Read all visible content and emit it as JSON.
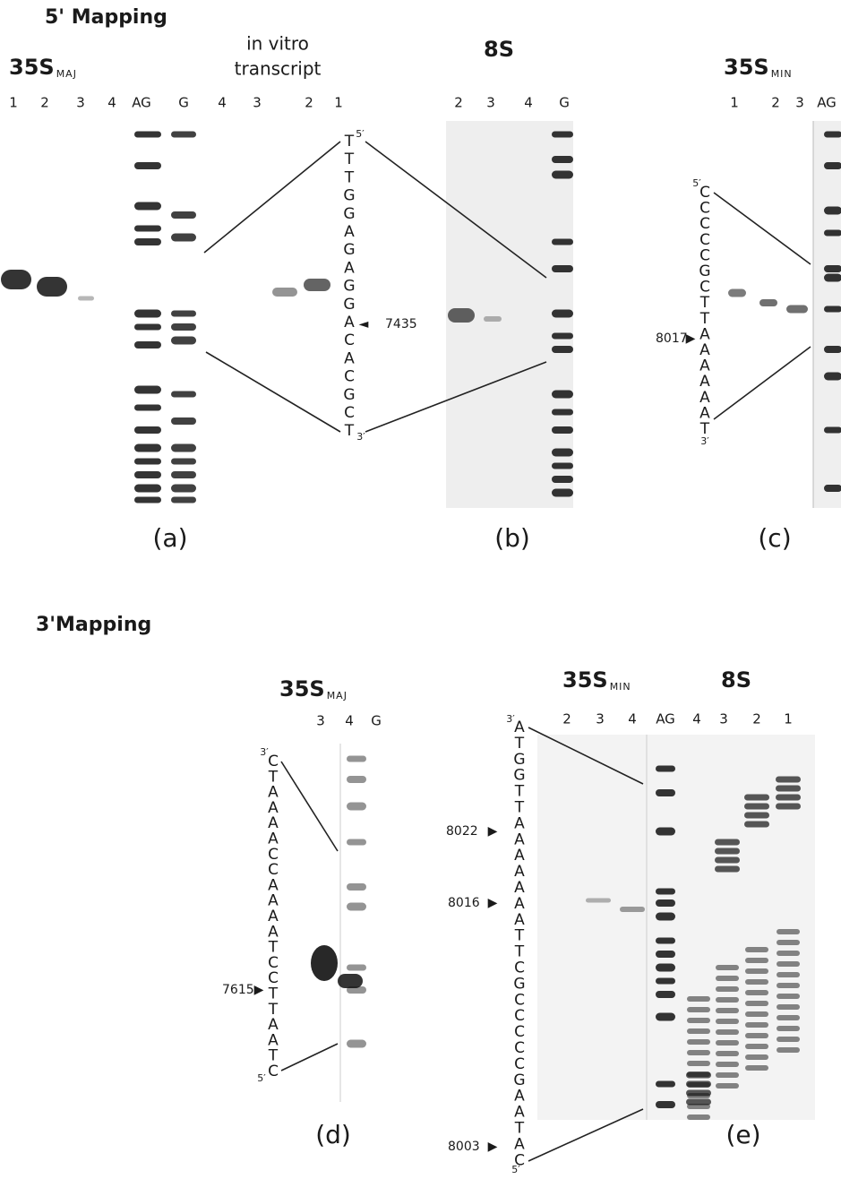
{
  "top": {
    "heading": "5' Mapping"
  },
  "bottom": {
    "heading": "3'Mapping"
  },
  "panels": [
    {
      "label": "(a)",
      "titles": [
        {
          "text": "35S",
          "sub": "MAJ"
        }
      ],
      "note": [
        "in vitro",
        "transcript"
      ],
      "lanes": [
        "1",
        "2",
        "3",
        "4",
        "AG",
        "G",
        "4",
        "3",
        "2",
        "1"
      ],
      "sequence": [
        "T",
        "T",
        "T",
        "G",
        "G",
        "A",
        "G",
        "A",
        "G",
        "G",
        "A",
        "C",
        "A",
        "C",
        "G",
        "C",
        "T"
      ],
      "end_top": "5′",
      "end_bottom": "3′",
      "markers": [
        "7435"
      ]
    },
    {
      "label": "(b)",
      "titles": [
        {
          "text": "8S"
        }
      ],
      "lanes": [
        "2",
        "3",
        "4",
        "G"
      ]
    },
    {
      "label": "(c)",
      "titles": [
        {
          "text": "35S",
          "sub": "MIN"
        }
      ],
      "lanes": [
        "1",
        "2",
        "3",
        "AG"
      ],
      "sequence": [
        "C",
        "C",
        "C",
        "C",
        "C",
        "G",
        "C",
        "T",
        "T",
        "A",
        "A",
        "A",
        "A",
        "A",
        "A",
        "T"
      ],
      "end_top": "5′",
      "end_bottom": "3′",
      "markers": [
        "8017"
      ]
    },
    {
      "label": "(d)",
      "titles": [
        {
          "text": "35S",
          "sub": "MAJ"
        }
      ],
      "lanes": [
        "3",
        "4",
        "G"
      ],
      "sequence": [
        "C",
        "T",
        "A",
        "A",
        "A",
        "A",
        "C",
        "C",
        "A",
        "A",
        "A",
        "A",
        "T",
        "C",
        "C",
        "T",
        "T",
        "A",
        "A",
        "T",
        "C"
      ],
      "end_top": "3′",
      "end_bottom": "5′",
      "markers": [
        "7615"
      ]
    },
    {
      "label": "(e)",
      "titles": [
        {
          "text": "35S",
          "sub": "MIN"
        },
        {
          "text": "8S"
        }
      ],
      "lanes": [
        "2",
        "3",
        "4",
        "AG",
        "4",
        "3",
        "2",
        "1"
      ],
      "sequence": [
        "A",
        "T",
        "G",
        "G",
        "T",
        "T",
        "A",
        "A",
        "A",
        "A",
        "A",
        "A",
        "A",
        "T",
        "T",
        "C",
        "G",
        "C",
        "C",
        "C",
        "C",
        "C",
        "G",
        "A",
        "A",
        "T",
        "A",
        "C"
      ],
      "end_top": "3′",
      "end_bottom": "5′",
      "markers": [
        "8022",
        "8016",
        "8003"
      ]
    }
  ]
}
